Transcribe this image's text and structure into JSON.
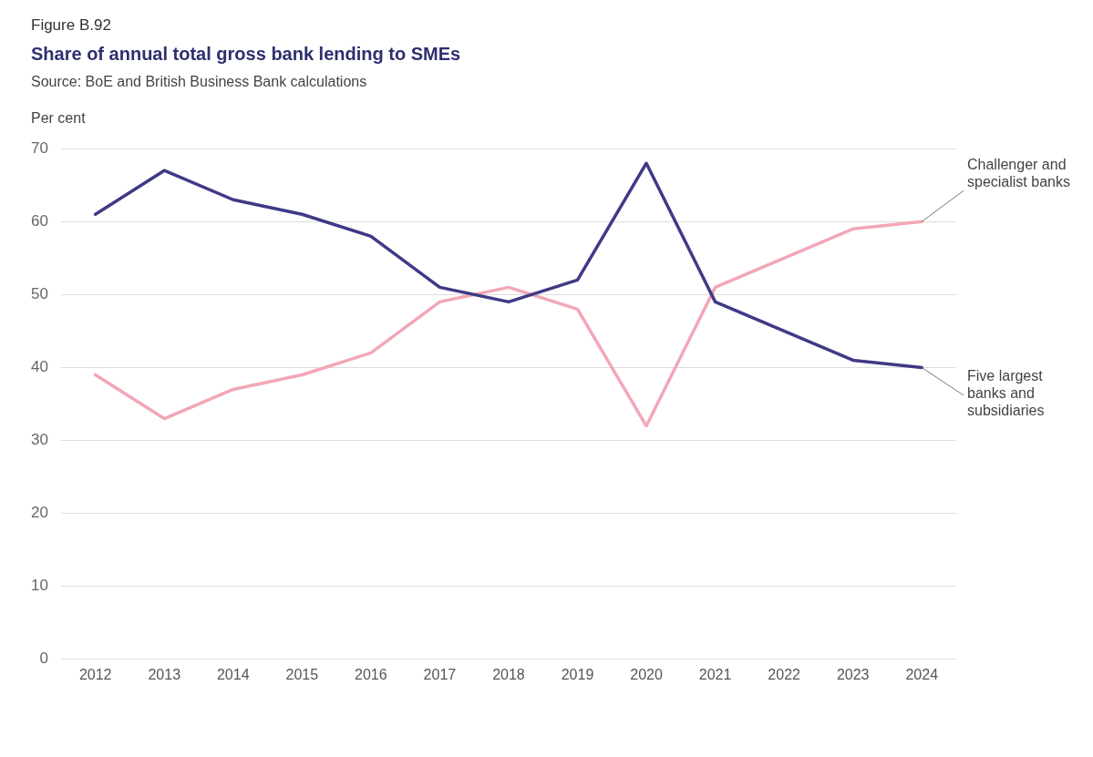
{
  "chart_data": {
    "type": "line",
    "title": "Share of annual total gross bank lending to SMEs",
    "ylabel": "Per cent",
    "annotations": [
      "Figure B.92",
      "Source: BoE and British Business Bank calculations"
    ],
    "categories": [
      "2012",
      "2013",
      "2014",
      "2015",
      "2016",
      "2017",
      "2018",
      "2019",
      "2020",
      "2021",
      "2022",
      "2023",
      "2024"
    ],
    "series": [
      {
        "name": "Five largest banks and subsidiaries",
        "color": "#3f3a86",
        "values": [
          61,
          67,
          63,
          61,
          58,
          51,
          49,
          52,
          68,
          49,
          45,
          41,
          40
        ]
      },
      {
        "name": "Challenger and specialist banks",
        "color": "#f2a7b6",
        "values": [
          39,
          33,
          37,
          39,
          42,
          49,
          51,
          48,
          32,
          51,
          55,
          59,
          60
        ]
      }
    ],
    "ylim": [
      0,
      70
    ],
    "yticks": [
      0,
      10,
      20,
      30,
      40,
      50,
      60,
      70
    ],
    "grid": "y",
    "legend": false,
    "marker": "none",
    "line_style": "solid"
  }
}
